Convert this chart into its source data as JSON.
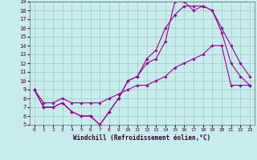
{
  "xlabel": "Windchill (Refroidissement éolien,°C)",
  "bg_color": "#c8ecec",
  "grid_color": "#9fc8c8",
  "line_color": "#990099",
  "x_min": 0,
  "x_max": 23,
  "y_min": 5,
  "y_max": 19,
  "line1_y": [
    9,
    7,
    7,
    7.5,
    6.5,
    6,
    6,
    5,
    6.5,
    8,
    10,
    10.5,
    12.5,
    13.5,
    16,
    17.5,
    18.5,
    18.5,
    18.5,
    18,
    15.5,
    12,
    10.5,
    9.5
  ],
  "line2_y": [
    9,
    7,
    7,
    7.5,
    6.5,
    6,
    6,
    5,
    6.5,
    8,
    10,
    10.5,
    12,
    12.5,
    14.5,
    19,
    19,
    18,
    18.5,
    18,
    16,
    14,
    12,
    10.5
  ],
  "line3_y": [
    9,
    7.5,
    7.5,
    8,
    7.5,
    7.5,
    7.5,
    7.5,
    8,
    8.5,
    9,
    9.5,
    9.5,
    10,
    10.5,
    11.5,
    12,
    12.5,
    13,
    14,
    14,
    9.5,
    9.5,
    9.5
  ]
}
